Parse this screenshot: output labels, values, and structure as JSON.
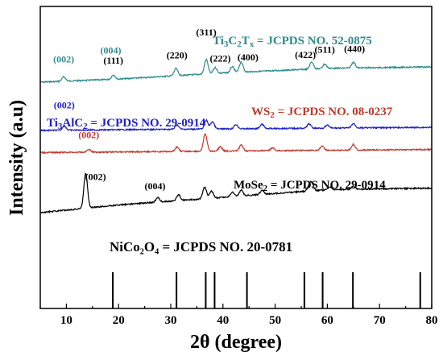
{
  "chart_data": {
    "type": "line",
    "xlabel": "2θ (degree)",
    "ylabel": "Intensity (a.u)",
    "xlim": [
      5,
      80
    ],
    "xticks": [
      10,
      20,
      30,
      40,
      50,
      60,
      70,
      80
    ],
    "grid": false,
    "series": [
      {
        "name": "Ti3C2Tx",
        "color": "#2e8b8b",
        "reference": {
          "pre": "Ti",
          "s1": "3",
          "m1": "C",
          "s2": "2",
          "m2": "T",
          "s3": "x",
          "post": " = JCPDS NO. 52-0875"
        },
        "baseline": [
          [
            5,
            0.0
          ],
          [
            20,
            0.1
          ],
          [
            40,
            0.3
          ],
          [
            60,
            0.45
          ],
          [
            80,
            0.5
          ]
        ],
        "level": 300,
        "peaks": [
          [
            9.5,
            3
          ],
          [
            19.0,
            3
          ],
          [
            31.0,
            5
          ],
          [
            36.8,
            10
          ],
          [
            38.5,
            4
          ],
          [
            41.8,
            4
          ],
          [
            43.5,
            7
          ],
          [
            57.0,
            5
          ],
          [
            59.5,
            3
          ],
          [
            65.0,
            4
          ]
        ],
        "labels": [
          {
            "text": "(002)",
            "x": 9.5,
            "dy": 18,
            "color": "#2e8b8b"
          },
          {
            "text": "(004)",
            "x": 18.5,
            "dy": 30,
            "color": "#2e8b8b"
          }
        ]
      },
      {
        "name": "Ti3AlC2",
        "color": "#1f1fc8",
        "reference": {
          "pre": "Ti",
          "s1": "3",
          "m1": "AlC",
          "s2": "2",
          "post": " = JCPDS NO. 29-0914"
        },
        "baseline": [
          [
            5,
            0.0
          ],
          [
            40,
            0.05
          ],
          [
            80,
            0.1
          ]
        ],
        "level": 226,
        "peaks": [
          [
            9.6,
            3
          ],
          [
            31.2,
            3
          ],
          [
            36.8,
            6
          ],
          [
            38.0,
            5
          ],
          [
            42.5,
            3
          ],
          [
            47.5,
            3
          ],
          [
            56.5,
            3
          ],
          [
            60.0,
            2
          ],
          [
            65.0,
            3
          ]
        ],
        "labels": [
          {
            "text": "(002)",
            "x": 9.6,
            "dy": 22,
            "color": "#1f1fc8"
          }
        ]
      },
      {
        "name": "WS2",
        "color": "#c0392b",
        "reference": {
          "pre": "WS",
          "s1": "2",
          "post": " = JCPDS NO. 08-0237"
        },
        "baseline": [
          [
            5,
            0.0
          ],
          [
            40,
            0.05
          ],
          [
            80,
            0.1
          ]
        ],
        "level": 192,
        "peaks": [
          [
            14.3,
            2
          ],
          [
            31.2,
            3
          ],
          [
            36.6,
            12
          ],
          [
            39.5,
            3
          ],
          [
            43.5,
            4
          ],
          [
            49.5,
            2
          ],
          [
            59.0,
            3
          ],
          [
            65.0,
            4
          ]
        ],
        "labels": [
          {
            "text": "(002)",
            "x": 14.3,
            "dy": 14,
            "color": "#c0392b"
          }
        ]
      },
      {
        "name": "MoSe2",
        "color": "#000000",
        "reference": {
          "pre": "MoSe",
          "s1": "2",
          "post": " = JCPDS NO. 29-0914"
        },
        "baseline": [
          [
            5,
            0.0
          ],
          [
            20,
            0.25
          ],
          [
            40,
            0.5
          ],
          [
            60,
            0.75
          ],
          [
            80,
            0.8
          ]
        ],
        "level": 100,
        "peaks": [
          [
            13.7,
            24
          ],
          [
            27.5,
            3
          ],
          [
            31.5,
            4
          ],
          [
            36.5,
            8
          ],
          [
            37.8,
            5
          ],
          [
            41.8,
            3
          ],
          [
            43.5,
            4
          ],
          [
            47.5,
            3
          ],
          [
            56.5,
            3
          ],
          [
            57.0,
            5
          ],
          [
            60.5,
            2
          ],
          [
            65.0,
            2
          ]
        ],
        "labels": [
          {
            "text": "(002)",
            "x": 15.6,
            "dy": 34,
            "color": "#000000"
          },
          {
            "text": "(004)",
            "x": 27.0,
            "dy": 14,
            "color": "#000000"
          }
        ]
      }
    ],
    "peak_labels": [
      {
        "text": "(111)",
        "x": 19.0,
        "color": "#000000"
      },
      {
        "text": "(220)",
        "x": 31.2,
        "color": "#000000"
      },
      {
        "text": "(311)",
        "x": 36.8,
        "color": "#000000"
      },
      {
        "text": "(222)",
        "x": 39.5,
        "color": "#000000"
      },
      {
        "text": "(400)",
        "x": 44.8,
        "color": "#000000"
      },
      {
        "text": "(422)",
        "x": 55.8,
        "color": "#000000"
      },
      {
        "text": "(511)",
        "x": 59.5,
        "color": "#000000"
      },
      {
        "text": "(440)",
        "x": 65.2,
        "color": "#000000"
      }
    ],
    "standard": {
      "text": "NiCo₂O₄ = JCPDS NO. 20-0781",
      "lines": [
        18.9,
        31.1,
        36.7,
        38.4,
        44.6,
        55.6,
        59.1,
        64.9,
        77.8
      ]
    }
  }
}
